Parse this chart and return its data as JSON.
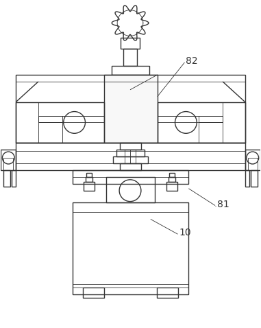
{
  "bg_color": "#ffffff",
  "line_color": "#333333",
  "line_width": 1.0,
  "thin_line": 0.6,
  "label_82": "82",
  "label_81": "81",
  "label_10": "10",
  "label_fontsize": 10,
  "figsize": [
    3.81,
    4.78
  ],
  "dpi": 100
}
